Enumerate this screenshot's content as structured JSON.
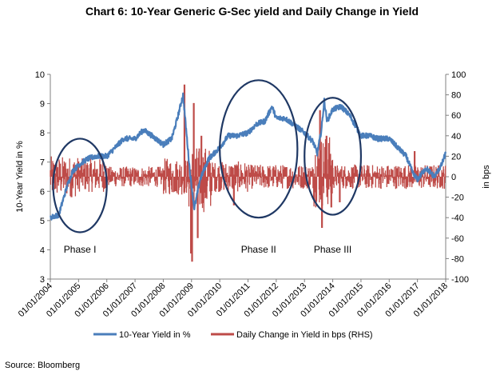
{
  "source": "Source: Bloomberg",
  "chart_data": {
    "type": "line",
    "title": "Chart 6: 10-Year Generic G-Sec yield and Daily Change in Yield",
    "y_left_label": "10-Year Yield in %",
    "y_right_label": "in bps",
    "y_left_range": [
      3,
      10
    ],
    "y_left_ticks": [
      "3",
      "4",
      "5",
      "6",
      "7",
      "8",
      "9",
      "10"
    ],
    "y_right_range": [
      -100,
      100
    ],
    "y_right_ticks": [
      "-100",
      "-80",
      "-60",
      "-40",
      "-20",
      "0",
      "20",
      "40",
      "60",
      "80",
      "100"
    ],
    "x_range": [
      "2004-01-01",
      "2018-01-01"
    ],
    "x_tick_labels": [
      "01/01/2004",
      "01/01/2005",
      "01/01/2006",
      "01/01/2007",
      "01/01/2008",
      "01/01/2009",
      "01/01/2010",
      "01/01/2011",
      "01/01/2012",
      "01/01/2013",
      "01/01/2014",
      "01/01/2015",
      "01/01/2016",
      "01/01/2017",
      "01/01/2018"
    ],
    "grid": false,
    "legend_position": "bottom",
    "colors": {
      "yield": "#4a7ebb",
      "change": "#be4b48",
      "circle": "#1f3864"
    },
    "series": [
      {
        "name": "10-Year Yield in %",
        "axis": "left",
        "x": [
          2004.0,
          2004.3,
          2004.6,
          2004.8,
          2005.0,
          2005.3,
          2005.6,
          2006.0,
          2006.3,
          2006.6,
          2007.0,
          2007.3,
          2007.6,
          2008.0,
          2008.3,
          2008.5,
          2008.7,
          2008.95,
          2009.1,
          2009.3,
          2009.6,
          2010.0,
          2010.3,
          2010.6,
          2011.0,
          2011.3,
          2011.6,
          2011.85,
          2012.0,
          2012.3,
          2012.6,
          2013.0,
          2013.3,
          2013.45,
          2013.6,
          2013.7,
          2013.8,
          2014.0,
          2014.3,
          2014.6,
          2015.0,
          2015.3,
          2015.6,
          2016.0,
          2016.3,
          2016.6,
          2016.85,
          2017.0,
          2017.3,
          2017.6,
          2017.85,
          2018.0
        ],
        "values": [
          5.1,
          5.2,
          6.2,
          6.7,
          6.9,
          7.1,
          7.2,
          7.2,
          7.5,
          7.8,
          7.8,
          8.1,
          7.9,
          7.6,
          7.8,
          8.5,
          9.3,
          6.6,
          5.4,
          6.4,
          7.1,
          7.5,
          7.9,
          7.9,
          8.0,
          8.3,
          8.4,
          8.9,
          8.5,
          8.5,
          8.3,
          8.0,
          7.7,
          7.3,
          8.1,
          9.1,
          8.4,
          8.8,
          8.9,
          8.6,
          7.9,
          7.9,
          7.8,
          7.8,
          7.5,
          7.2,
          6.6,
          6.4,
          6.8,
          6.5,
          6.9,
          7.3
        ]
      },
      {
        "name": "Daily Change in Yield in bps (RHS)",
        "axis": "right",
        "range_by_year": [
          {
            "from": 2004.0,
            "to": 2005.0,
            "min": -20,
            "max": 20
          },
          {
            "from": 2005.0,
            "to": 2006.0,
            "min": -15,
            "max": 18
          },
          {
            "from": 2006.0,
            "to": 2008.0,
            "min": -10,
            "max": 10
          },
          {
            "from": 2008.0,
            "to": 2008.9,
            "min": -18,
            "max": 18
          },
          {
            "from": 2008.9,
            "to": 2009.7,
            "min": -35,
            "max": 30
          },
          {
            "from": 2009.7,
            "to": 2011.0,
            "min": -15,
            "max": 15
          },
          {
            "from": 2011.0,
            "to": 2013.3,
            "min": -12,
            "max": 12
          },
          {
            "from": 2013.3,
            "to": 2014.0,
            "min": -30,
            "max": 40
          },
          {
            "from": 2014.0,
            "to": 2018.0,
            "min": -12,
            "max": 12
          }
        ],
        "spikes": [
          {
            "x": 2004.75,
            "value": -20
          },
          {
            "x": 2008.75,
            "value": 90
          },
          {
            "x": 2008.98,
            "value": -75
          },
          {
            "x": 2009.02,
            "value": -83
          },
          {
            "x": 2009.08,
            "value": 72
          },
          {
            "x": 2009.22,
            "value": -60
          },
          {
            "x": 2009.35,
            "value": 40
          },
          {
            "x": 2010.5,
            "value": -28
          },
          {
            "x": 2013.55,
            "value": 65
          },
          {
            "x": 2013.62,
            "value": -50
          },
          {
            "x": 2013.78,
            "value": 40
          },
          {
            "x": 2013.95,
            "value": -30
          },
          {
            "x": 2014.25,
            "value": -25
          },
          {
            "x": 2016.9,
            "value": 25
          }
        ]
      }
    ],
    "annotations": [
      {
        "type": "ellipse",
        "label": "Phase I",
        "x_range": [
          2004.1,
          2006.0
        ],
        "y_left_range": [
          4.6,
          7.8
        ]
      },
      {
        "type": "ellipse",
        "label": "Phase II",
        "x_range": [
          2010.0,
          2012.75
        ],
        "y_left_range": [
          5.1,
          9.8
        ]
      },
      {
        "type": "ellipse",
        "label": "Phase III",
        "x_range": [
          2013.0,
          2015.0
        ],
        "y_left_range": [
          5.2,
          9.2
        ]
      }
    ]
  }
}
